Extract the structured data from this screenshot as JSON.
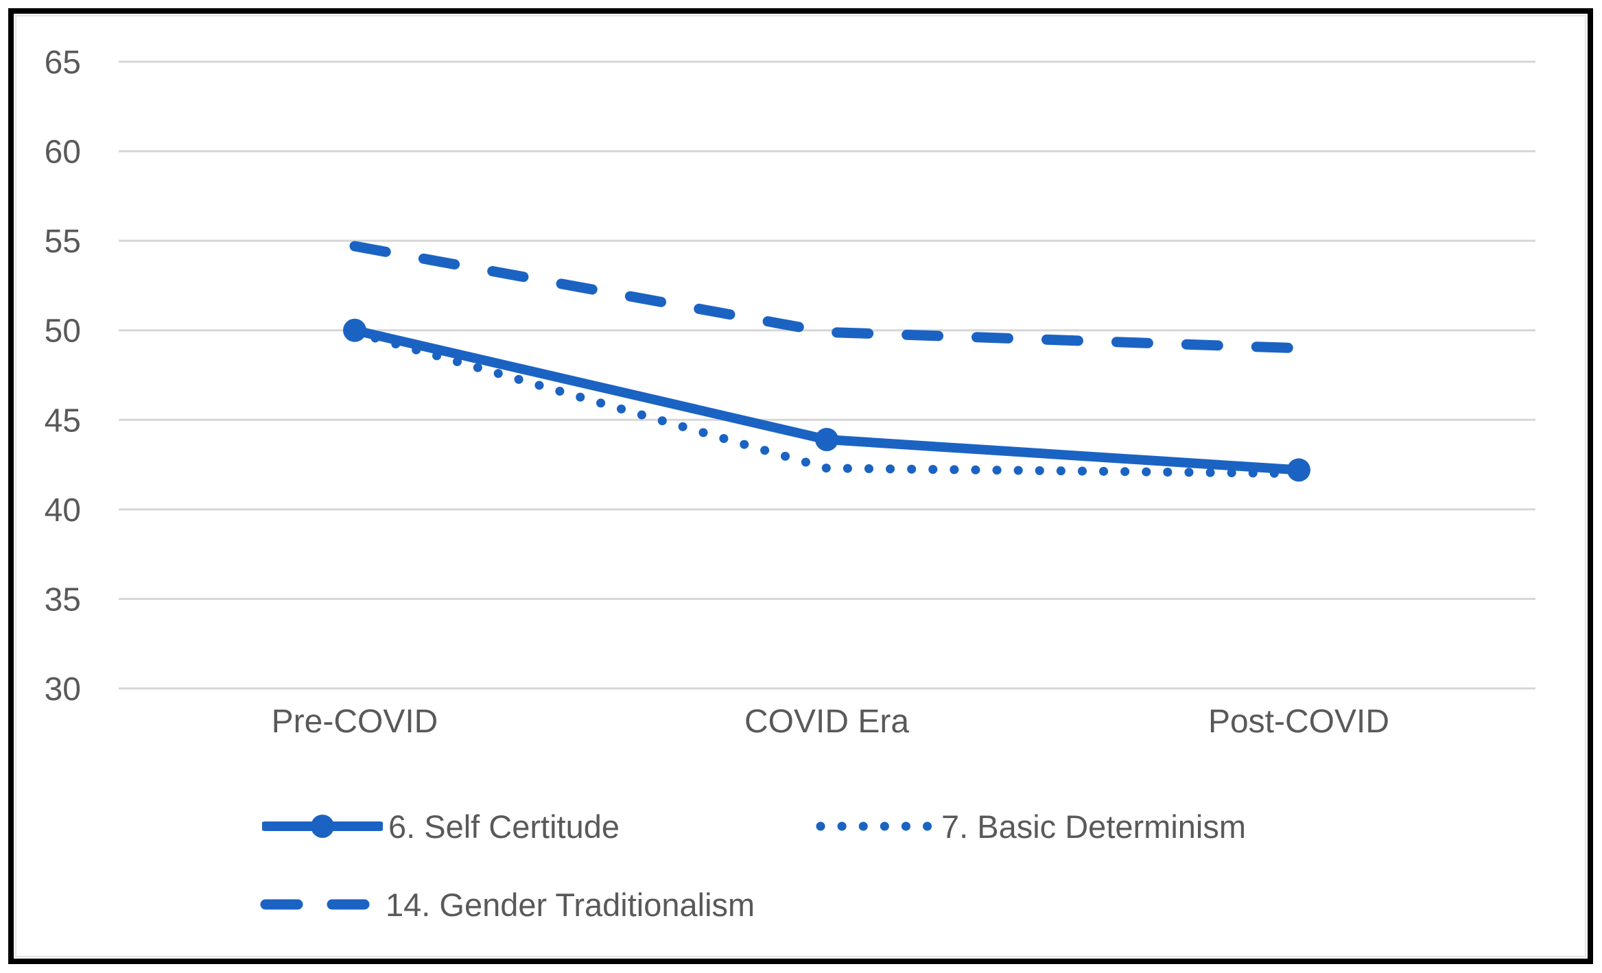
{
  "chart_data": {
    "type": "line",
    "categories": [
      "Pre-COVID",
      "COVID Era",
      "Post-COVID"
    ],
    "series": [
      {
        "name": "6. Self Certitude",
        "values": [
          50.0,
          43.9,
          42.2
        ],
        "style": "solid",
        "marker": "circle"
      },
      {
        "name": "7. Basic Determinism",
        "values": [
          49.9,
          42.3,
          42.0
        ],
        "style": "dotted",
        "marker": "none"
      },
      {
        "name": "14. Gender Traditionalism",
        "values": [
          54.7,
          49.9,
          49.0
        ],
        "style": "dashed",
        "marker": "none"
      }
    ],
    "title": "",
    "xlabel": "",
    "ylabel": "",
    "ylim": [
      30,
      65
    ],
    "yticks": [
      65,
      60,
      55,
      50,
      45,
      40,
      35,
      30
    ],
    "grid": true,
    "legend_position": "bottom",
    "line_color": "#1b63c3",
    "gridline_color": "#d6d6d6",
    "axis_text_color": "#595959",
    "frame_color": "#000000"
  }
}
